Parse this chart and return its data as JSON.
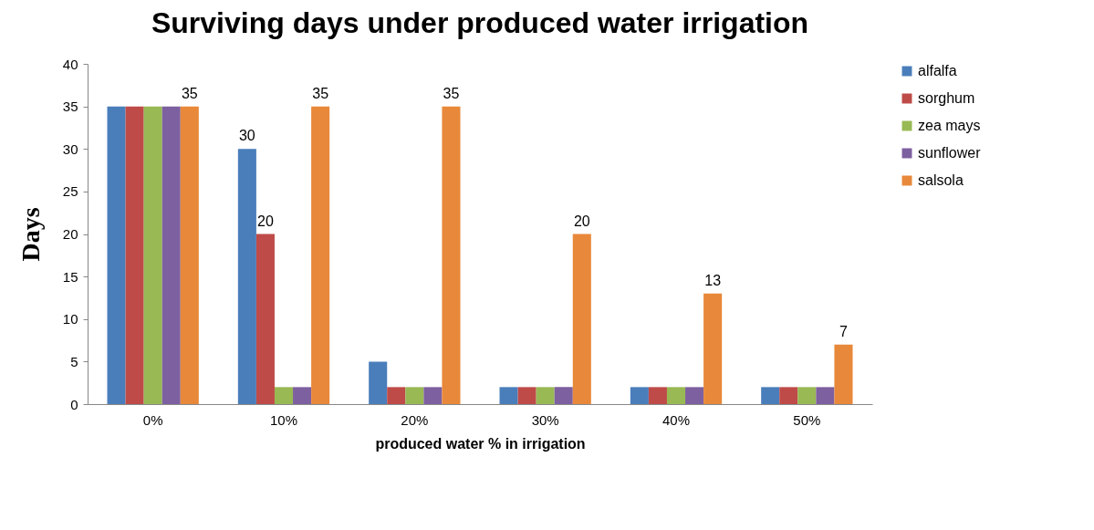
{
  "chart_data": {
    "type": "bar",
    "title": "Surviving days under produced water irrigation",
    "xlabel": "produced water % in irrigation",
    "ylabel": "Days",
    "categories": [
      "0%",
      "10%",
      "20%",
      "30%",
      "40%",
      "50%"
    ],
    "series": [
      {
        "name": "alfalfa",
        "color": "#4a7ebb",
        "values": [
          35,
          30,
          5,
          2,
          2,
          2
        ],
        "value_labels": [
          null,
          "30",
          null,
          null,
          null,
          null
        ]
      },
      {
        "name": "sorghum",
        "color": "#be4b48",
        "values": [
          35,
          20,
          2,
          2,
          2,
          2
        ],
        "value_labels": [
          null,
          "20",
          null,
          null,
          null,
          null
        ]
      },
      {
        "name": "zea mays",
        "color": "#98b954",
        "values": [
          35,
          2,
          2,
          2,
          2,
          2
        ],
        "value_labels": [
          null,
          null,
          null,
          null,
          null,
          null
        ]
      },
      {
        "name": "sunflower",
        "color": "#7d60a0",
        "values": [
          35,
          2,
          2,
          2,
          2,
          2
        ],
        "value_labels": [
          null,
          null,
          null,
          null,
          null,
          null
        ]
      },
      {
        "name": "salsola",
        "color": "#e8883a",
        "values": [
          35,
          35,
          35,
          20,
          13,
          7
        ],
        "value_labels": [
          "35",
          "35",
          "35",
          "20",
          "13",
          "7"
        ]
      }
    ],
    "ylim": [
      0,
      40
    ],
    "yticks": [
      0,
      5,
      10,
      15,
      20,
      25,
      30,
      35,
      40
    ],
    "grid": false,
    "legend": "right"
  }
}
